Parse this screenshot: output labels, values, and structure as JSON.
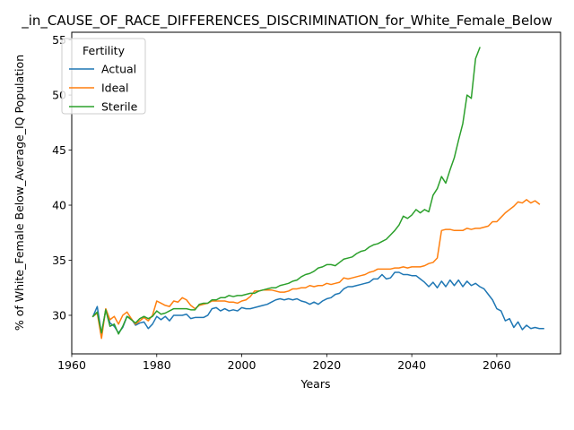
{
  "chart_data": {
    "type": "line",
    "title": "_in_CAUSE_OF_RACE_DIFFERENCES_DISCRIMINATION_for_White_Female_Below",
    "xlabel": "Years",
    "ylabel": "% of White_Female Below_Average_IQ Population",
    "xlim": [
      1960,
      2075
    ],
    "ylim": [
      26.5,
      55.7
    ],
    "xticks": [
      1960,
      1980,
      2000,
      2020,
      2040,
      2060
    ],
    "yticks": [
      30,
      35,
      40,
      45,
      50,
      55
    ],
    "grid": false,
    "legend": {
      "title": "Fertility",
      "placement": "upper-left"
    },
    "series": [
      {
        "name": "Actual",
        "color": "#1f77b4",
        "points": [
          [
            1965,
            29.9
          ],
          [
            1966,
            30.8
          ],
          [
            1967,
            28.3
          ],
          [
            1968,
            30.5
          ],
          [
            1969,
            29.3
          ],
          [
            1970,
            29.0
          ],
          [
            1971,
            28.4
          ],
          [
            1972,
            28.9
          ],
          [
            1973,
            29.9
          ],
          [
            1974,
            29.7
          ],
          [
            1975,
            29.1
          ],
          [
            1976,
            29.3
          ],
          [
            1977,
            29.4
          ],
          [
            1978,
            28.8
          ],
          [
            1979,
            29.2
          ],
          [
            1980,
            29.9
          ],
          [
            1981,
            29.6
          ],
          [
            1982,
            29.9
          ],
          [
            1983,
            29.5
          ],
          [
            1984,
            30.0
          ],
          [
            1985,
            30.0
          ],
          [
            1986,
            30.0
          ],
          [
            1987,
            30.1
          ],
          [
            1988,
            29.7
          ],
          [
            1989,
            29.8
          ],
          [
            1990,
            29.8
          ],
          [
            1991,
            29.8
          ],
          [
            1992,
            30.0
          ],
          [
            1993,
            30.6
          ],
          [
            1994,
            30.7
          ],
          [
            1995,
            30.4
          ],
          [
            1996,
            30.6
          ],
          [
            1997,
            30.4
          ],
          [
            1998,
            30.5
          ],
          [
            1999,
            30.4
          ],
          [
            2000,
            30.7
          ],
          [
            2001,
            30.6
          ],
          [
            2002,
            30.6
          ],
          [
            2003,
            30.7
          ],
          [
            2004,
            30.8
          ],
          [
            2005,
            30.9
          ],
          [
            2006,
            31.0
          ],
          [
            2007,
            31.2
          ],
          [
            2008,
            31.4
          ],
          [
            2009,
            31.5
          ],
          [
            2010,
            31.4
          ],
          [
            2011,
            31.5
          ],
          [
            2012,
            31.4
          ],
          [
            2013,
            31.5
          ],
          [
            2014,
            31.3
          ],
          [
            2015,
            31.2
          ],
          [
            2016,
            31.0
          ],
          [
            2017,
            31.2
          ],
          [
            2018,
            31.0
          ],
          [
            2019,
            31.3
          ],
          [
            2020,
            31.5
          ],
          [
            2021,
            31.6
          ],
          [
            2022,
            31.9
          ],
          [
            2023,
            32.0
          ],
          [
            2024,
            32.4
          ],
          [
            2025,
            32.6
          ],
          [
            2026,
            32.6
          ],
          [
            2027,
            32.7
          ],
          [
            2028,
            32.8
          ],
          [
            2029,
            32.9
          ],
          [
            2030,
            33.0
          ],
          [
            2031,
            33.3
          ],
          [
            2032,
            33.3
          ],
          [
            2033,
            33.7
          ],
          [
            2034,
            33.3
          ],
          [
            2035,
            33.4
          ],
          [
            2036,
            33.9
          ],
          [
            2037,
            33.9
          ],
          [
            2038,
            33.7
          ],
          [
            2039,
            33.7
          ],
          [
            2040,
            33.6
          ],
          [
            2041,
            33.6
          ],
          [
            2042,
            33.3
          ],
          [
            2043,
            33.0
          ],
          [
            2044,
            32.6
          ],
          [
            2045,
            33.0
          ],
          [
            2046,
            32.5
          ],
          [
            2047,
            33.1
          ],
          [
            2048,
            32.6
          ],
          [
            2049,
            33.2
          ],
          [
            2050,
            32.7
          ],
          [
            2051,
            33.2
          ],
          [
            2052,
            32.6
          ],
          [
            2053,
            33.1
          ],
          [
            2054,
            32.7
          ],
          [
            2055,
            32.9
          ],
          [
            2056,
            32.6
          ],
          [
            2057,
            32.4
          ],
          [
            2058,
            31.9
          ],
          [
            2059,
            31.4
          ],
          [
            2060,
            30.6
          ],
          [
            2061,
            30.4
          ],
          [
            2062,
            29.5
          ],
          [
            2063,
            29.7
          ],
          [
            2064,
            28.9
          ],
          [
            2065,
            29.4
          ],
          [
            2066,
            28.7
          ],
          [
            2067,
            29.1
          ],
          [
            2068,
            28.8
          ],
          [
            2069,
            28.9
          ],
          [
            2070,
            28.8
          ],
          [
            2071,
            28.8
          ]
        ]
      },
      {
        "name": "Ideal",
        "color": "#ff7f0e",
        "points": [
          [
            1965,
            29.9
          ],
          [
            1966,
            30.2
          ],
          [
            1967,
            27.9
          ],
          [
            1968,
            30.6
          ],
          [
            1969,
            29.6
          ],
          [
            1970,
            29.9
          ],
          [
            1971,
            29.2
          ],
          [
            1972,
            30.0
          ],
          [
            1973,
            30.3
          ],
          [
            1974,
            29.7
          ],
          [
            1975,
            29.2
          ],
          [
            1976,
            29.5
          ],
          [
            1977,
            29.8
          ],
          [
            1978,
            29.5
          ],
          [
            1979,
            30.0
          ],
          [
            1980,
            31.3
          ],
          [
            1981,
            31.1
          ],
          [
            1982,
            30.9
          ],
          [
            1983,
            30.8
          ],
          [
            1984,
            31.3
          ],
          [
            1985,
            31.2
          ],
          [
            1986,
            31.6
          ],
          [
            1987,
            31.4
          ],
          [
            1988,
            30.9
          ],
          [
            1989,
            30.6
          ],
          [
            1990,
            30.9
          ],
          [
            1991,
            31.0
          ],
          [
            1992,
            31.1
          ],
          [
            1993,
            31.3
          ],
          [
            1994,
            31.3
          ],
          [
            1995,
            31.3
          ],
          [
            1996,
            31.3
          ],
          [
            1997,
            31.2
          ],
          [
            1998,
            31.2
          ],
          [
            1999,
            31.1
          ],
          [
            2000,
            31.3
          ],
          [
            2001,
            31.4
          ],
          [
            2002,
            31.7
          ],
          [
            2003,
            32.2
          ],
          [
            2004,
            32.2
          ],
          [
            2005,
            32.3
          ],
          [
            2006,
            32.3
          ],
          [
            2007,
            32.3
          ],
          [
            2008,
            32.2
          ],
          [
            2009,
            32.1
          ],
          [
            2010,
            32.1
          ],
          [
            2011,
            32.2
          ],
          [
            2012,
            32.4
          ],
          [
            2013,
            32.4
          ],
          [
            2014,
            32.5
          ],
          [
            2015,
            32.5
          ],
          [
            2016,
            32.7
          ],
          [
            2017,
            32.6
          ],
          [
            2018,
            32.7
          ],
          [
            2019,
            32.7
          ],
          [
            2020,
            32.9
          ],
          [
            2021,
            32.8
          ],
          [
            2022,
            32.9
          ],
          [
            2023,
            33.0
          ],
          [
            2024,
            33.4
          ],
          [
            2025,
            33.3
          ],
          [
            2026,
            33.4
          ],
          [
            2027,
            33.5
          ],
          [
            2028,
            33.6
          ],
          [
            2029,
            33.7
          ],
          [
            2030,
            33.9
          ],
          [
            2031,
            34.0
          ],
          [
            2032,
            34.2
          ],
          [
            2033,
            34.2
          ],
          [
            2034,
            34.2
          ],
          [
            2035,
            34.2
          ],
          [
            2036,
            34.3
          ],
          [
            2037,
            34.3
          ],
          [
            2038,
            34.4
          ],
          [
            2039,
            34.3
          ],
          [
            2040,
            34.4
          ],
          [
            2041,
            34.4
          ],
          [
            2042,
            34.4
          ],
          [
            2043,
            34.5
          ],
          [
            2044,
            34.7
          ],
          [
            2045,
            34.8
          ],
          [
            2046,
            35.2
          ],
          [
            2047,
            37.7
          ],
          [
            2048,
            37.8
          ],
          [
            2049,
            37.8
          ],
          [
            2050,
            37.7
          ],
          [
            2051,
            37.7
          ],
          [
            2052,
            37.7
          ],
          [
            2053,
            37.9
          ],
          [
            2054,
            37.8
          ],
          [
            2055,
            37.9
          ],
          [
            2056,
            37.9
          ],
          [
            2057,
            38.0
          ],
          [
            2058,
            38.1
          ],
          [
            2059,
            38.5
          ],
          [
            2060,
            38.5
          ],
          [
            2061,
            38.9
          ],
          [
            2062,
            39.3
          ],
          [
            2063,
            39.6
          ],
          [
            2064,
            39.9
          ],
          [
            2065,
            40.3
          ],
          [
            2066,
            40.2
          ],
          [
            2067,
            40.5
          ],
          [
            2068,
            40.2
          ],
          [
            2069,
            40.4
          ],
          [
            2070,
            40.1
          ]
        ]
      },
      {
        "name": "Sterile",
        "color": "#2ca02c",
        "points": [
          [
            1965,
            29.9
          ],
          [
            1966,
            30.3
          ],
          [
            1967,
            28.4
          ],
          [
            1968,
            30.5
          ],
          [
            1969,
            29.0
          ],
          [
            1970,
            29.2
          ],
          [
            1971,
            28.3
          ],
          [
            1972,
            29.0
          ],
          [
            1973,
            29.9
          ],
          [
            1974,
            29.6
          ],
          [
            1975,
            29.3
          ],
          [
            1976,
            29.7
          ],
          [
            1977,
            29.9
          ],
          [
            1978,
            29.7
          ],
          [
            1979,
            29.9
          ],
          [
            1980,
            30.4
          ],
          [
            1981,
            30.1
          ],
          [
            1982,
            30.2
          ],
          [
            1983,
            30.4
          ],
          [
            1984,
            30.6
          ],
          [
            1985,
            30.6
          ],
          [
            1986,
            30.6
          ],
          [
            1987,
            30.6
          ],
          [
            1988,
            30.5
          ],
          [
            1989,
            30.5
          ],
          [
            1990,
            31.0
          ],
          [
            1991,
            31.1
          ],
          [
            1992,
            31.1
          ],
          [
            1993,
            31.4
          ],
          [
            1994,
            31.4
          ],
          [
            1995,
            31.6
          ],
          [
            1996,
            31.6
          ],
          [
            1997,
            31.8
          ],
          [
            1998,
            31.7
          ],
          [
            1999,
            31.8
          ],
          [
            2000,
            31.8
          ],
          [
            2001,
            31.9
          ],
          [
            2002,
            32.0
          ],
          [
            2003,
            32.0
          ],
          [
            2004,
            32.2
          ],
          [
            2005,
            32.3
          ],
          [
            2006,
            32.4
          ],
          [
            2007,
            32.5
          ],
          [
            2008,
            32.5
          ],
          [
            2009,
            32.7
          ],
          [
            2010,
            32.8
          ],
          [
            2011,
            32.9
          ],
          [
            2012,
            33.1
          ],
          [
            2013,
            33.2
          ],
          [
            2014,
            33.5
          ],
          [
            2015,
            33.7
          ],
          [
            2016,
            33.8
          ],
          [
            2017,
            34.0
          ],
          [
            2018,
            34.3
          ],
          [
            2019,
            34.4
          ],
          [
            2020,
            34.6
          ],
          [
            2021,
            34.6
          ],
          [
            2022,
            34.5
          ],
          [
            2023,
            34.8
          ],
          [
            2024,
            35.1
          ],
          [
            2025,
            35.2
          ],
          [
            2026,
            35.3
          ],
          [
            2027,
            35.6
          ],
          [
            2028,
            35.8
          ],
          [
            2029,
            35.9
          ],
          [
            2030,
            36.2
          ],
          [
            2031,
            36.4
          ],
          [
            2032,
            36.5
          ],
          [
            2033,
            36.7
          ],
          [
            2034,
            36.9
          ],
          [
            2035,
            37.3
          ],
          [
            2036,
            37.7
          ],
          [
            2037,
            38.2
          ],
          [
            2038,
            39.0
          ],
          [
            2039,
            38.8
          ],
          [
            2040,
            39.1
          ],
          [
            2041,
            39.6
          ],
          [
            2042,
            39.3
          ],
          [
            2043,
            39.6
          ],
          [
            2044,
            39.4
          ],
          [
            2045,
            40.9
          ],
          [
            2046,
            41.5
          ],
          [
            2047,
            42.6
          ],
          [
            2048,
            42.0
          ],
          [
            2049,
            43.2
          ],
          [
            2050,
            44.3
          ],
          [
            2051,
            45.9
          ],
          [
            2052,
            47.4
          ],
          [
            2053,
            50.0
          ],
          [
            2054,
            49.7
          ],
          [
            2055,
            53.3
          ],
          [
            2056,
            54.3
          ]
        ]
      }
    ]
  }
}
